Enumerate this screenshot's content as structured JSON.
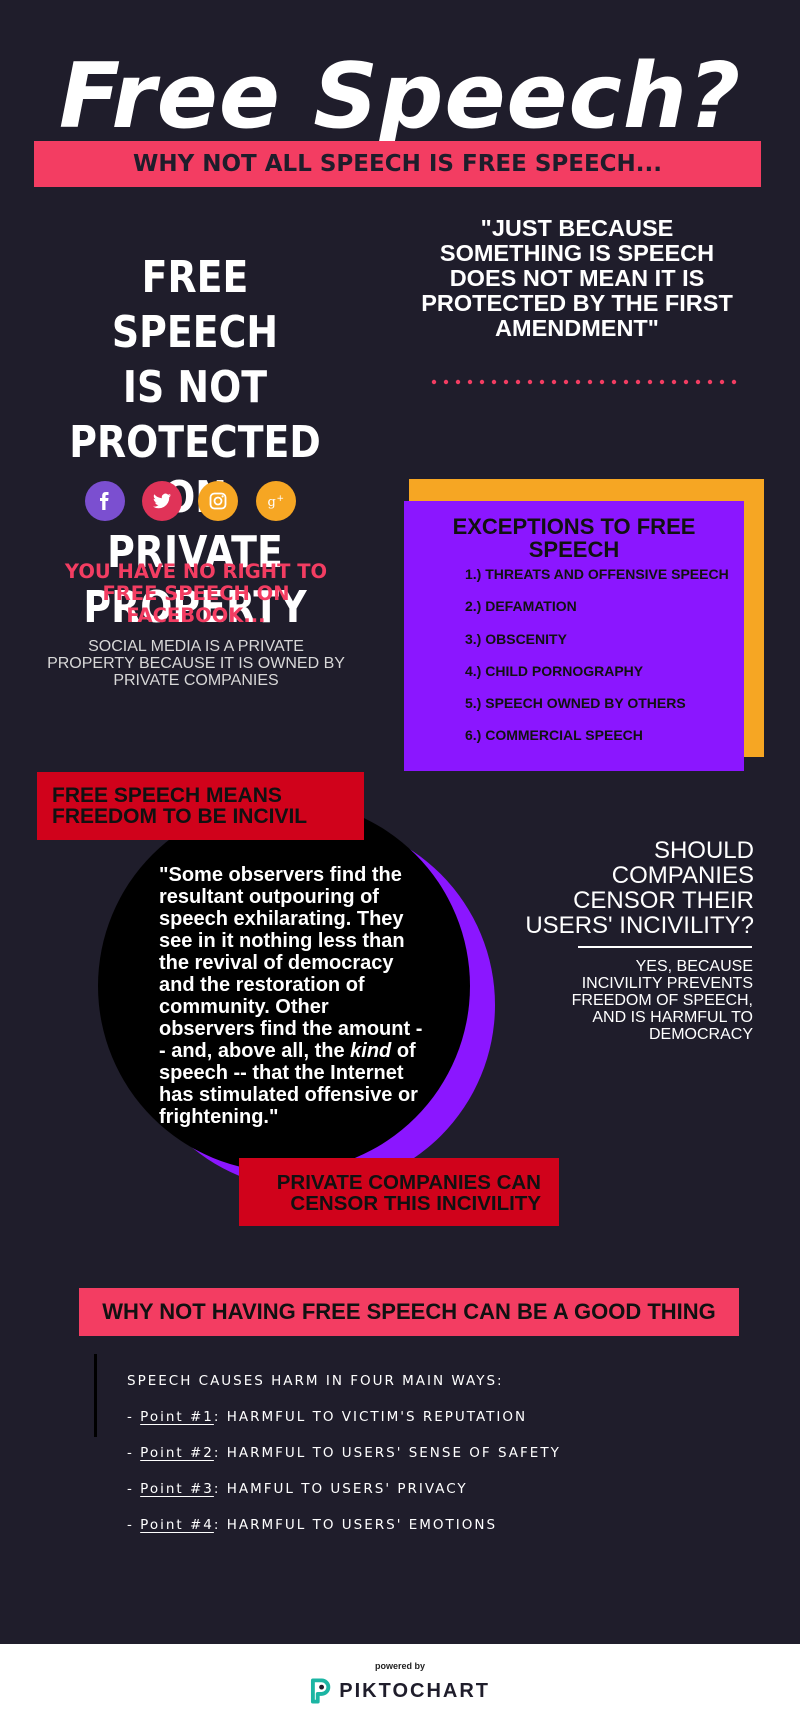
{
  "header": {
    "title": "Free Speech?",
    "subtitle": "WHY NOT ALL SPEECH IS FREE SPEECH..."
  },
  "private_property": {
    "heading_lines": [
      "FREE SPEECH",
      "IS NOT",
      "PROTECTED ON",
      "PRIVATE PROPERTY"
    ],
    "social_icons": [
      {
        "name": "facebook-icon",
        "color": "#7b4fd0",
        "glyph": "f"
      },
      {
        "name": "twitter-icon",
        "color": "#e03358",
        "glyph": "bird"
      },
      {
        "name": "instagram-icon",
        "color": "#f6a623",
        "glyph": "camera"
      },
      {
        "name": "google-plus-icon",
        "color": "#f6a623",
        "glyph": "g+"
      }
    ],
    "warning_lines": [
      "YOU HAVE NO RIGHT TO",
      "FREE SPEECH ON",
      "FACEBOOK..."
    ],
    "explanation_lines": [
      "SOCIAL MEDIA IS A PRIVATE",
      "PROPERTY BECAUSE IT IS OWNED BY",
      "PRIVATE COMPANIES"
    ]
  },
  "quote_top": {
    "lines": [
      "\"JUST  BECAUSE",
      "SOMETHING IS SPEECH",
      "DOES NOT MEAN IT IS",
      "PROTECTED BY THE FIRST",
      "AMENDMENT\""
    ]
  },
  "exceptions": {
    "title_lines": [
      "EXCEPTIONS TO FREE",
      "SPEECH"
    ],
    "items": [
      "1.) THREATS AND OFFENSIVE SPEECH",
      "2.) DEFAMATION",
      "3.) OBSCENITY",
      "4.) CHILD PORNOGRAPHY",
      "5.) SPEECH OWNED BY OTHERS",
      "6.) COMMERCIAL SPEECH"
    ]
  },
  "incivility": {
    "label_lines": [
      "FREE SPEECH MEANS",
      "FREEDOM TO BE INCIVIL"
    ],
    "quote_part1": "\"Some observers find the resultant outpouring of speech exhilarating. They see in it nothing less than the revival of democracy and the restoration of community. Other observers find the amount -- and, above all, the ",
    "quote_emphasis": "kind",
    "quote_part2": " of speech -- that the Internet has stimulated offensive or frightening.\"",
    "censor_label_lines": [
      "PRIVATE COMPANIES CAN",
      "CENSOR THIS INCIVILITY"
    ]
  },
  "censor_question": {
    "question_lines": [
      "SHOULD",
      "COMPANIES",
      "CENSOR THEIR",
      "USERS' INCIVILITY?"
    ],
    "answer_lines": [
      "YES, BECAUSE",
      "INCIVILITY PREVENTS",
      "FREEDOM OF SPEECH,",
      "AND IS HARMFUL TO",
      "DEMOCRACY"
    ]
  },
  "good_thing": {
    "heading": "WHY NOT HAVING FREE SPEECH CAN BE A GOOD THING",
    "intro": "SPEECH CAUSES HARM IN FOUR MAIN WAYS:",
    "points": [
      {
        "prefix": "- ",
        "label": "Point #1",
        "text": ": HARMFUL TO VICTIM'S REPUTATION"
      },
      {
        "prefix": "- ",
        "label": "Point #2",
        "text": ": HARMFUL TO USERS' SENSE OF SAFETY"
      },
      {
        "prefix": "- ",
        "label": "Point #3",
        "text": ": HAMFUL TO USERS' PRIVACY"
      },
      {
        "prefix": "- ",
        "label": "Point #4",
        "text": ": HARMFUL TO USERS' EMOTIONS"
      }
    ]
  },
  "footer": {
    "powered_by": "powered by",
    "brand": "PIKTOCHART",
    "brand_color": "#1bb5a3"
  },
  "colors": {
    "background": "#1f1d2b",
    "pink": "#f33d62",
    "purple": "#8b16ff",
    "orange": "#f6a623",
    "red": "#d0021b"
  }
}
